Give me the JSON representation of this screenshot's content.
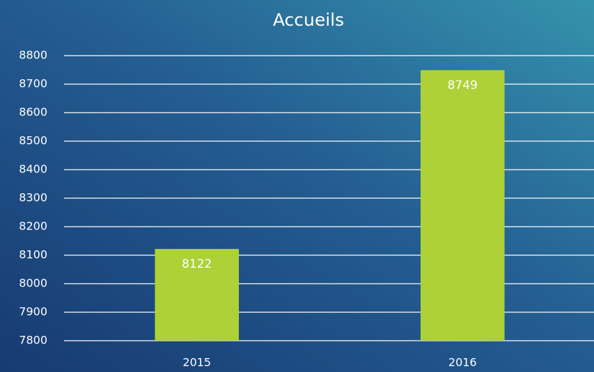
{
  "chart_data": {
    "type": "bar",
    "title": "Accueils",
    "categories": [
      "2015",
      "2016"
    ],
    "values": [
      8122,
      8749
    ],
    "color": "#add136",
    "ylim": [
      7800,
      8800
    ],
    "yticks": [
      7800,
      7900,
      8000,
      8100,
      8200,
      8300,
      8400,
      8500,
      8600,
      8700,
      8800
    ],
    "grid": true,
    "data_labels": true
  }
}
